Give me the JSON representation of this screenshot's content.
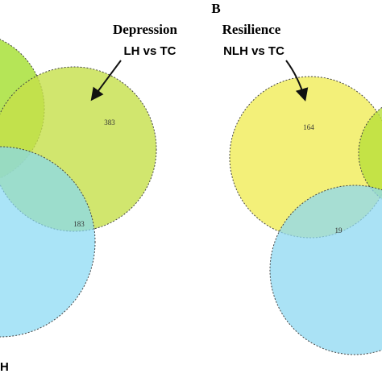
{
  "panel_label": "B",
  "left": {
    "title": "Depression",
    "subtitle": "LH vs TC",
    "counts": [
      383,
      183
    ]
  },
  "right": {
    "title": "Resilience",
    "subtitle": "NLH vs TC",
    "counts": [
      164,
      19
    ]
  },
  "bottom_label": "H"
}
